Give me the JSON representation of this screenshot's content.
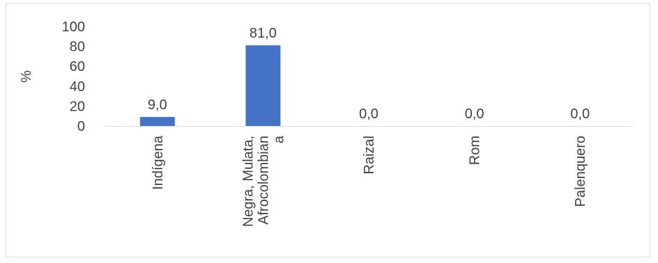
{
  "chart_data": {
    "type": "bar",
    "ylabel": "%",
    "ylim": [
      0,
      100
    ],
    "yticks": [
      0,
      20,
      40,
      60,
      80,
      100
    ],
    "ytick_labels": [
      "0",
      "20",
      "40",
      "60",
      "80",
      "100"
    ],
    "categories": [
      "Indígena",
      "Negra, Mulata, Afrocolombiana",
      "Raizal",
      "Rom",
      "Palenquero"
    ],
    "category_lines": [
      [
        "Indígena"
      ],
      [
        "Negra, Mulata,",
        "Afrocolombian",
        "a"
      ],
      [
        "Raizal"
      ],
      [
        "Rom"
      ],
      [
        "Palenquero"
      ]
    ],
    "values": [
      9.0,
      81.0,
      0.0,
      0.0,
      0.0
    ],
    "value_labels": [
      "9,0",
      "81,0",
      "0,0",
      "0,0",
      "0,0"
    ],
    "bar_color": "#4472C4",
    "axis_color": "#d9d9d9",
    "grid": false,
    "legend": "none"
  }
}
